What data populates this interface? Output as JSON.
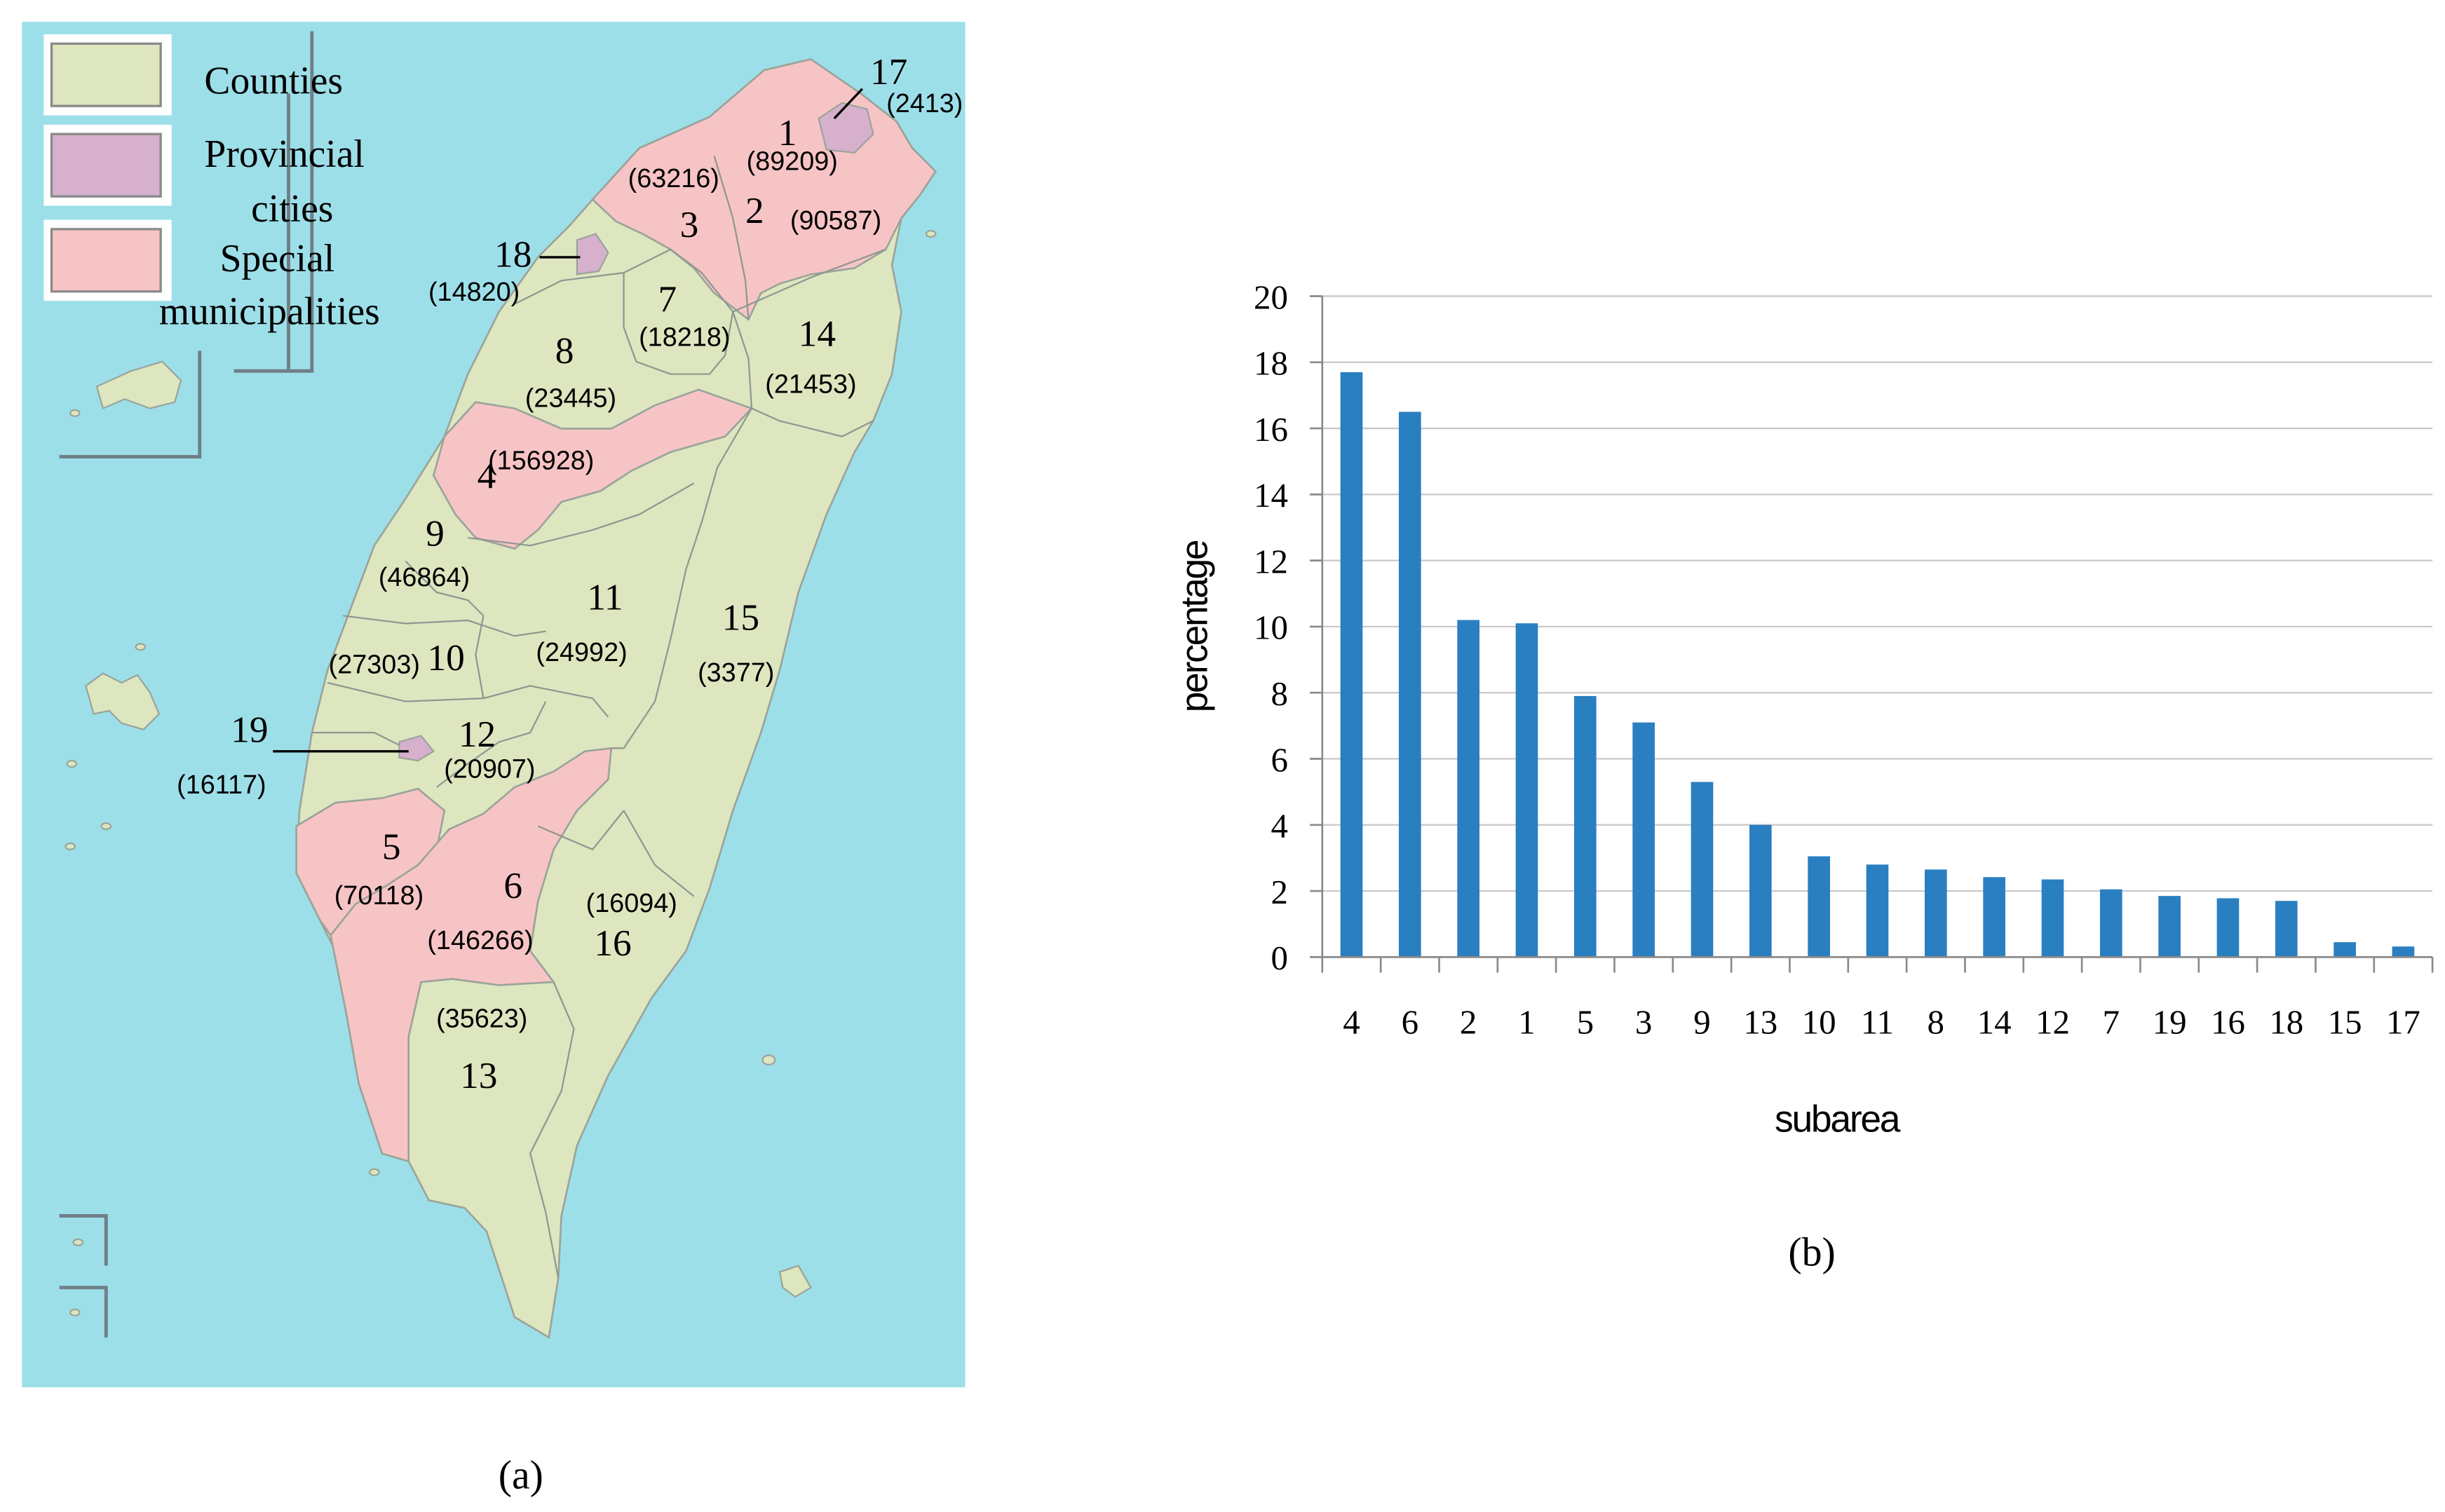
{
  "map": {
    "legend": [
      {
        "label_lines": [
          "Counties"
        ],
        "color": "#dde6bf"
      },
      {
        "label_lines": [
          "Provincial",
          "cities"
        ],
        "color": "#d6b0cd"
      },
      {
        "label_lines": [
          "Special",
          "municipalities"
        ],
        "color": "#f7c4c6"
      }
    ],
    "colors": {
      "sea": "#9ddfe9",
      "county": "#dde6bf",
      "city": "#d6b0cd",
      "special": "#f7c4c6",
      "border": "#8e978f"
    },
    "regions": [
      {
        "id": "1",
        "value": "(89209)",
        "type": "special"
      },
      {
        "id": "2",
        "value": "(90587)",
        "type": "special"
      },
      {
        "id": "3",
        "value": "(63216)",
        "type": "special"
      },
      {
        "id": "4",
        "value": "(156928)",
        "type": "special"
      },
      {
        "id": "5",
        "value": "(70118)",
        "type": "special"
      },
      {
        "id": "6",
        "value": "(146266)",
        "type": "special"
      },
      {
        "id": "7",
        "value": "(18218)",
        "type": "county"
      },
      {
        "id": "8",
        "value": "(23445)",
        "type": "county"
      },
      {
        "id": "9",
        "value": "(46864)",
        "type": "county"
      },
      {
        "id": "10",
        "value": "(27303)",
        "type": "county"
      },
      {
        "id": "11",
        "value": "(24992)",
        "type": "county"
      },
      {
        "id": "12",
        "value": "(20907)",
        "type": "county"
      },
      {
        "id": "13",
        "value": "(35623)",
        "type": "county"
      },
      {
        "id": "14",
        "value": "(21453)",
        "type": "county"
      },
      {
        "id": "15",
        "value": "(3377)",
        "type": "county"
      },
      {
        "id": "16",
        "value": "(16094)",
        "type": "county"
      },
      {
        "id": "17",
        "value": "(2413)",
        "type": "city"
      },
      {
        "id": "18",
        "value": "(14820)",
        "type": "city"
      },
      {
        "id": "19",
        "value": "(16117)",
        "type": "city"
      }
    ],
    "caption": "(a)"
  },
  "chart_data": {
    "type": "bar",
    "categories": [
      "4",
      "6",
      "2",
      "1",
      "5",
      "3",
      "9",
      "13",
      "10",
      "11",
      "8",
      "14",
      "12",
      "7",
      "19",
      "16",
      "18",
      "15",
      "17"
    ],
    "values": [
      17.7,
      16.5,
      10.2,
      10.1,
      7.9,
      7.1,
      5.3,
      4.0,
      3.05,
      2.8,
      2.65,
      2.42,
      2.35,
      2.05,
      1.85,
      1.78,
      1.7,
      0.45,
      0.32
    ],
    "xlabel": "subarea",
    "ylabel": "percentage",
    "ylim": [
      0,
      20
    ],
    "yticks": [
      0,
      2,
      4,
      6,
      8,
      10,
      12,
      14,
      16,
      18,
      20
    ],
    "grid": true,
    "bar_color": "#2a7fc1",
    "caption": "(b)"
  }
}
